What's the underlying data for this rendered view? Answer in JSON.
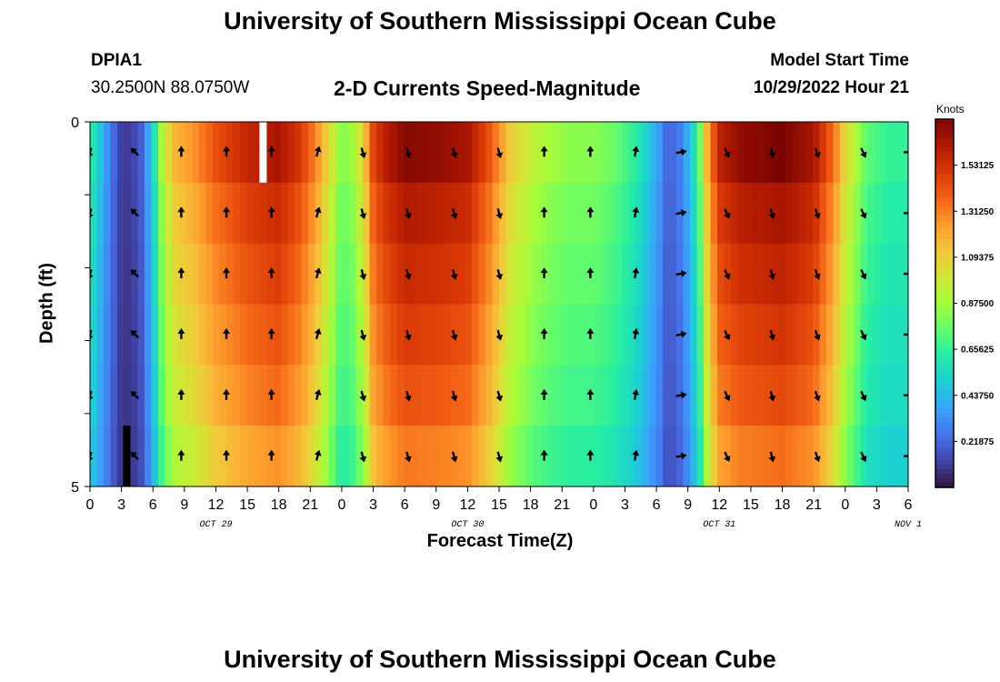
{
  "header": {
    "title": "University of Southern Mississippi Ocean Cube",
    "station_id": "DPIA1",
    "station_coords": "30.2500N  88.0750W",
    "product": "2-D Currents Speed-Magnitude",
    "model_start_label": "Model Start Time",
    "model_start_value": "10/29/2022 Hour 21"
  },
  "footer": {
    "title": "University of Southern Mississippi Ocean Cube"
  },
  "colors": {
    "background": "#ffffff",
    "arrow": "#000000",
    "missing": "#ffffff",
    "masked": "#000000",
    "colormap": [
      "#30123b",
      "#4145ab",
      "#4675ed",
      "#39a2fc",
      "#1bcfd4",
      "#24eca6",
      "#61fc6c",
      "#a4fc3b",
      "#d1e834",
      "#f3c63a",
      "#fe9b2d",
      "#f36315",
      "#d93806",
      "#b11901",
      "#7a0402"
    ]
  },
  "chart_data": {
    "type": "heatmap",
    "title": "2-D Currents Speed-Magnitude",
    "xlabel": "Forecast Time(Z)",
    "ylabel": "Depth (ft)",
    "x_tick_labels": [
      "0",
      "3",
      "6",
      "9",
      "12",
      "15",
      "18",
      "21",
      "0",
      "3",
      "6",
      "9",
      "12",
      "15",
      "18",
      "21",
      "0",
      "3",
      "6",
      "9",
      "12",
      "15",
      "18",
      "21",
      "0",
      "3",
      "6"
    ],
    "date_labels": [
      {
        "label": "OCT 29",
        "tick_index": 4
      },
      {
        "label": "OCT 30",
        "tick_index": 12
      },
      {
        "label": "OCT 31",
        "tick_index": 20
      },
      {
        "label": "NOV 1",
        "tick_index": 26
      }
    ],
    "x_range_hours": [
      0,
      78
    ],
    "y_tick_labels": [
      "0",
      "5"
    ],
    "y_range_ft": [
      0,
      5
    ],
    "depth_levels_ft": [
      0,
      1,
      2,
      3,
      4,
      5
    ],
    "colorbar": {
      "units": "Knots",
      "tick_labels": [
        "1.53125",
        "1.31250",
        "1.09375",
        "0.87500",
        "0.65625",
        "0.43750",
        "0.21875"
      ],
      "tick_values": [
        1.53125,
        1.3125,
        1.09375,
        0.875,
        0.65625,
        0.4375,
        0.21875
      ],
      "range": [
        0,
        1.75
      ]
    },
    "speed_knots_by_hour": [
      [
        0,
        0.62
      ],
      [
        1,
        0.45
      ],
      [
        2,
        0.25
      ],
      [
        3,
        0.1
      ],
      [
        4,
        0.1
      ],
      [
        5,
        0.2
      ],
      [
        6,
        0.5
      ],
      [
        7,
        0.9
      ],
      [
        8,
        1.1
      ],
      [
        10,
        1.2
      ],
      [
        12,
        1.35
      ],
      [
        15,
        1.48
      ],
      [
        18,
        1.55
      ],
      [
        20,
        1.42
      ],
      [
        21,
        1.3
      ],
      [
        22,
        1.15
      ],
      [
        23,
        0.95
      ],
      [
        24,
        0.75
      ],
      [
        25,
        0.82
      ],
      [
        26,
        1.0
      ],
      [
        27,
        1.38
      ],
      [
        28,
        1.5
      ],
      [
        30,
        1.62
      ],
      [
        33,
        1.6
      ],
      [
        36,
        1.55
      ],
      [
        38,
        1.35
      ],
      [
        39,
        1.2
      ],
      [
        40,
        1.05
      ],
      [
        42,
        0.9
      ],
      [
        44,
        0.82
      ],
      [
        46,
        0.78
      ],
      [
        48,
        0.78
      ],
      [
        50,
        0.72
      ],
      [
        52,
        0.6
      ],
      [
        54,
        0.38
      ],
      [
        55,
        0.2
      ],
      [
        56,
        0.22
      ],
      [
        57,
        0.4
      ],
      [
        58,
        0.65
      ],
      [
        59,
        1.2
      ],
      [
        60,
        1.5
      ],
      [
        62,
        1.6
      ],
      [
        66,
        1.65
      ],
      [
        69,
        1.55
      ],
      [
        71,
        1.25
      ],
      [
        72,
        1.0
      ],
      [
        73,
        0.85
      ],
      [
        74,
        0.7
      ],
      [
        76,
        0.62
      ],
      [
        78,
        0.62
      ]
    ],
    "depth_factor": [
      1.06,
      1.0,
      0.96,
      0.92,
      0.88,
      0.82
    ],
    "missing_cells": [
      {
        "hour": 16.5,
        "depth_ft": 0
      }
    ],
    "masked_cells": [
      {
        "hour": 3.5,
        "depth_ft": 5
      }
    ],
    "arrow_hours": [
      0,
      4.3,
      8.7,
      13.0,
      17.3,
      21.7,
      26.0,
      30.3,
      34.7,
      39.0,
      43.3,
      47.7,
      52.0,
      56.3,
      60.7,
      65.0,
      69.3,
      73.7,
      78.0
    ],
    "arrow_direction_deg": [
      195,
      315,
      0,
      0,
      0,
      15,
      165,
      165,
      165,
      165,
      0,
      0,
      10,
      80,
      155,
      165,
      160,
      155,
      90
    ]
  }
}
